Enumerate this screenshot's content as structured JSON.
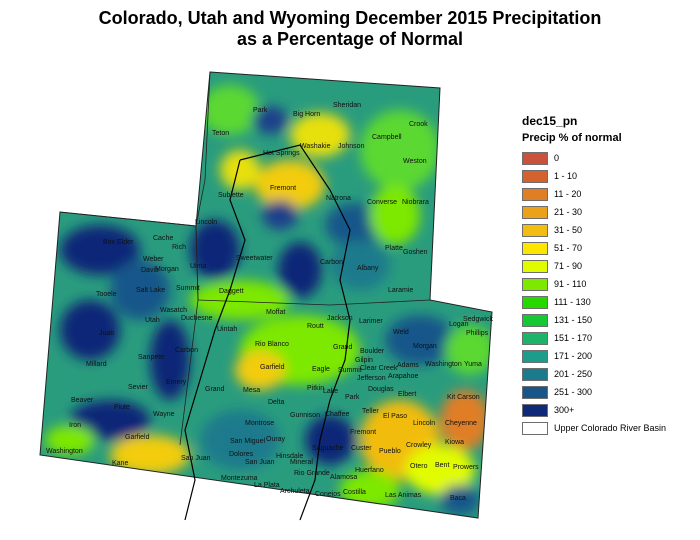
{
  "title": {
    "line1": "Colorado, Utah and Wyoming December 2015 Precipitation",
    "line2": "as a Percentage of Normal"
  },
  "legend": {
    "layer_name": "dec15_pn",
    "subtitle": "Precip % of normal",
    "items": [
      {
        "label": "0",
        "color": "#c8523c"
      },
      {
        "label": "1 - 10",
        "color": "#d4622e"
      },
      {
        "label": "11 - 20",
        "color": "#e07e26"
      },
      {
        "label": "21 - 30",
        "color": "#eba21a"
      },
      {
        "label": "31 - 50",
        "color": "#f2bc10"
      },
      {
        "label": "51 - 70",
        "color": "#fce600"
      },
      {
        "label": "71 - 90",
        "color": "#e2fc00"
      },
      {
        "label": "91 - 110",
        "color": "#7de800"
      },
      {
        "label": "111 - 130",
        "color": "#26d800"
      },
      {
        "label": "131 - 150",
        "color": "#17c835"
      },
      {
        "label": "151 - 170",
        "color": "#1db46a"
      },
      {
        "label": "171 - 200",
        "color": "#1c9c8a"
      },
      {
        "label": "201 - 250",
        "color": "#1b7a8c"
      },
      {
        "label": "251 - 300",
        "color": "#18568a"
      },
      {
        "label": "300+",
        "color": "#0f2878"
      },
      {
        "label": "Upper Colorado River Basin",
        "color": "#ffffff"
      }
    ]
  },
  "counties": {
    "wyoming": [
      "Park",
      "Big Horn",
      "Sheridan",
      "Teton",
      "Washakie",
      "Johnson",
      "Campbell",
      "Crook",
      "Hot Springs",
      "Weston",
      "Fremont",
      "Sublette",
      "Natrona",
      "Converse",
      "Niobrara",
      "Lincoln",
      "Sweetwater",
      "Carbon",
      "Albany",
      "Platte",
      "Goshen",
      "Uinta",
      "Laramie"
    ],
    "utah": [
      "Box Elder",
      "Cache",
      "Rich",
      "Weber",
      "Davis",
      "Morgan",
      "Tooele",
      "Salt Lake",
      "Summit",
      "Daggett",
      "Wasatch",
      "Utah",
      "Duchesne",
      "Uintah",
      "Juab",
      "Carbon",
      "Sanpete",
      "Millard",
      "Emery",
      "Grand",
      "Sevier",
      "Beaver",
      "Piute",
      "Wayne",
      "Iron",
      "Garfield",
      "Washington",
      "Kane",
      "San Juan"
    ],
    "colorado": [
      "Moffat",
      "Routt",
      "Jackson",
      "Larimer",
      "Weld",
      "Logan",
      "Sedgwick",
      "Phillips",
      "Morgan",
      "Rio Blanco",
      "Grand",
      "Boulder",
      "Gilpin",
      "Clear Creek",
      "Adams",
      "Washington",
      "Yuma",
      "Garfield",
      "Eagle",
      "Summit",
      "Jefferson",
      "Arapahoe",
      "Mesa",
      "Pitkin",
      "Lake",
      "Douglas",
      "Elbert",
      "Kit Carson",
      "Delta",
      "Park",
      "Gunnison",
      "Chaffee",
      "Teller",
      "El Paso",
      "Lincoln",
      "Cheyenne",
      "Montrose",
      "Fremont",
      "Ouray",
      "San Miguel",
      "Hinsdale",
      "Saguache",
      "Custer",
      "Pueblo",
      "Crowley",
      "Kiowa",
      "Dolores",
      "San Juan",
      "Mineral",
      "Otero",
      "Bent",
      "Prowers",
      "Rio Grande",
      "Alamosa",
      "Huerfano",
      "Montezuma",
      "La Plata",
      "Archuleta",
      "Conejos",
      "Costilla",
      "Las Animas",
      "Baca"
    ]
  }
}
